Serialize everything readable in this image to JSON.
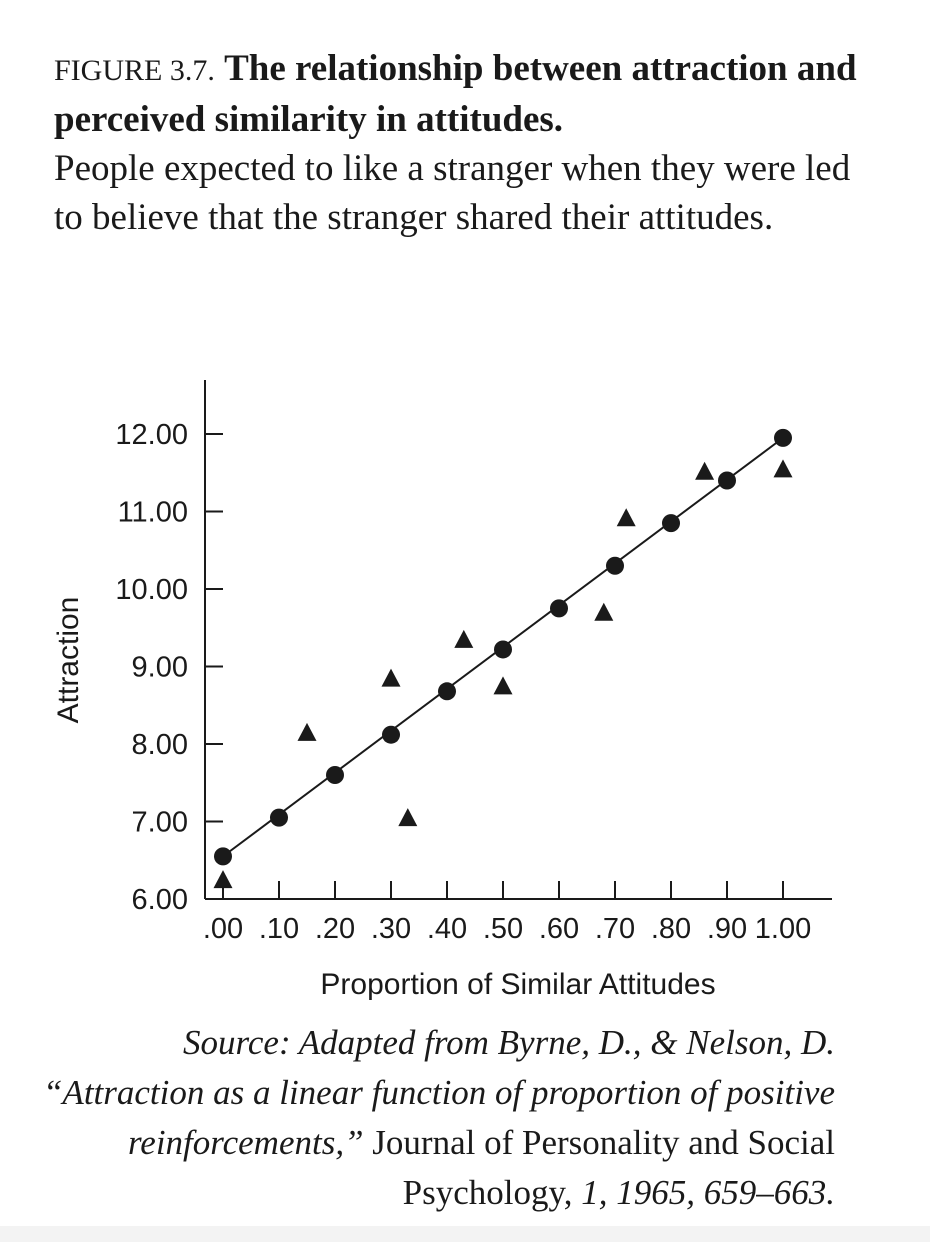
{
  "caption": {
    "label": "FIGURE 3.7.",
    "title": "The relationship between attraction and perceived similarity in attitudes.",
    "description": "People expected to like a stranger when they were led to believe that the stranger shared their attitudes."
  },
  "chart_data": {
    "type": "scatter",
    "title": "",
    "xlabel": "Proportion of Similar Attitudes",
    "ylabel": "Attraction",
    "xlim": [
      0,
      1
    ],
    "ylim": [
      6,
      12
    ],
    "x_ticks": [
      ".00",
      ".10",
      ".20",
      ".30",
      ".40",
      ".50",
      ".60",
      ".70",
      ".80",
      ".90",
      "1.00"
    ],
    "y_ticks": [
      "6.00",
      "7.00",
      "8.00",
      "9.00",
      "10.00",
      "11.00",
      "12.00"
    ],
    "grid": false,
    "series": [
      {
        "marker": "circle",
        "points": [
          {
            "x": 0.0,
            "y": 6.55
          },
          {
            "x": 0.1,
            "y": 7.05
          },
          {
            "x": 0.2,
            "y": 7.6
          },
          {
            "x": 0.3,
            "y": 8.12
          },
          {
            "x": 0.4,
            "y": 8.68
          },
          {
            "x": 0.5,
            "y": 9.22
          },
          {
            "x": 0.6,
            "y": 9.75
          },
          {
            "x": 0.7,
            "y": 10.3
          },
          {
            "x": 0.8,
            "y": 10.85
          },
          {
            "x": 0.9,
            "y": 11.4
          },
          {
            "x": 1.0,
            "y": 11.95
          }
        ]
      },
      {
        "marker": "triangle",
        "points": [
          {
            "x": 0.0,
            "y": 6.25
          },
          {
            "x": 0.15,
            "y": 8.15
          },
          {
            "x": 0.3,
            "y": 8.85
          },
          {
            "x": 0.33,
            "y": 7.05
          },
          {
            "x": 0.43,
            "y": 9.35
          },
          {
            "x": 0.5,
            "y": 8.75
          },
          {
            "x": 0.68,
            "y": 9.7
          },
          {
            "x": 0.72,
            "y": 10.92
          },
          {
            "x": 0.86,
            "y": 11.52
          },
          {
            "x": 1.0,
            "y": 11.55
          }
        ]
      }
    ],
    "fit_line": {
      "x": [
        0.0,
        1.0
      ],
      "y": [
        6.55,
        11.95
      ]
    }
  },
  "source": {
    "prefix": "Source: Adapted from Byrne, D., & Nelson, D. “Attraction as a linear function of proportion of positive reinforcements,”",
    "journal": "Journal of Personality and Social Psychology,",
    "citation": "1, 1965, 659–663."
  }
}
